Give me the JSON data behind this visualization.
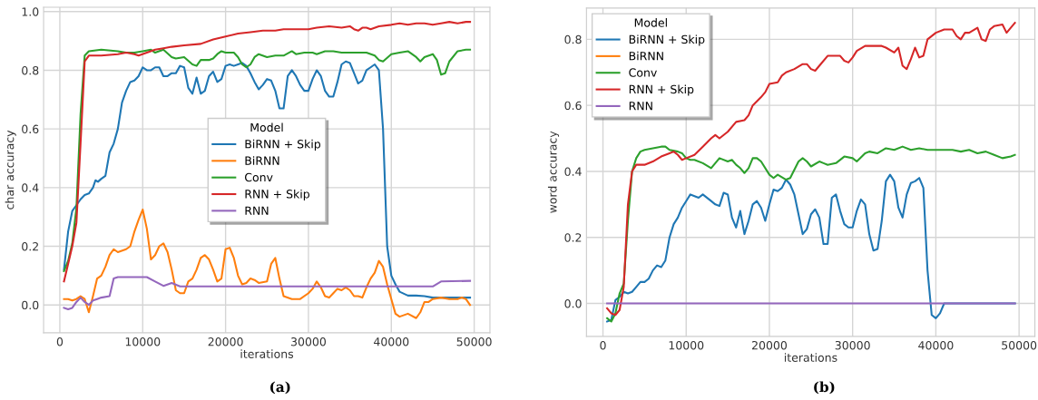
{
  "chart_data": [
    {
      "type": "line",
      "xlabel": "iterations",
      "ylabel": "char accuracy",
      "legend_title": "Model",
      "legend": "center",
      "grid": true,
      "annotations": [
        "(a)"
      ],
      "xlim": [
        -1960,
        51900
      ],
      "ylim": [
        -0.095,
        1.015
      ],
      "xticks": [
        0,
        10000,
        20000,
        30000,
        40000,
        50000
      ],
      "yticks": [
        {
          "value": 0,
          "label": "0.0"
        },
        {
          "value": 0.2,
          "label": "0.2"
        },
        {
          "value": 0.4,
          "label": "0.4"
        },
        {
          "value": 0.6,
          "label": "0.6"
        },
        {
          "value": 0.8,
          "label": "0.8"
        },
        {
          "value": 1.0,
          "label": "1.0"
        }
      ],
      "series": [
        {
          "name": "BiRNN + Skip",
          "color": "#1f77b4",
          "x": [
            500,
            1000,
            1500,
            2000,
            2500,
            3000,
            3500,
            4000,
            4300,
            4600,
            5000,
            5500,
            6000,
            6500,
            7000,
            7500,
            8000,
            8500,
            9000,
            9500,
            10000,
            10500,
            11000,
            11500,
            12000,
            12500,
            13000,
            13500,
            14000,
            14500,
            15000,
            15500,
            16000,
            16500,
            17000,
            17500,
            18000,
            18500,
            19000,
            19500,
            20000,
            20500,
            21000,
            21500,
            22000,
            22500,
            23000,
            23500,
            24000,
            24500,
            25000,
            25500,
            26000,
            26500,
            27000,
            27500,
            28000,
            28500,
            29000,
            29500,
            30000,
            30500,
            31000,
            31500,
            32000,
            32500,
            33000,
            33500,
            34000,
            34500,
            35000,
            35500,
            36000,
            36500,
            37000,
            37500,
            38000,
            38500,
            39000,
            39500,
            40000,
            40500,
            41000,
            42000,
            43000,
            44000,
            45000,
            49500
          ],
          "values": [
            0.12,
            0.25,
            0.32,
            0.34,
            0.36,
            0.375,
            0.38,
            0.4,
            0.425,
            0.42,
            0.43,
            0.44,
            0.52,
            0.55,
            0.6,
            0.69,
            0.73,
            0.76,
            0.765,
            0.78,
            0.81,
            0.8,
            0.8,
            0.81,
            0.81,
            0.78,
            0.78,
            0.79,
            0.79,
            0.815,
            0.81,
            0.74,
            0.72,
            0.775,
            0.72,
            0.73,
            0.78,
            0.795,
            0.76,
            0.77,
            0.815,
            0.82,
            0.815,
            0.82,
            0.825,
            0.815,
            0.79,
            0.76,
            0.735,
            0.75,
            0.77,
            0.765,
            0.73,
            0.67,
            0.67,
            0.78,
            0.8,
            0.78,
            0.75,
            0.73,
            0.73,
            0.77,
            0.8,
            0.78,
            0.73,
            0.71,
            0.71,
            0.76,
            0.82,
            0.83,
            0.825,
            0.79,
            0.755,
            0.765,
            0.8,
            0.81,
            0.82,
            0.8,
            0.6,
            0.2,
            0.1,
            0.07,
            0.045,
            0.032,
            0.032,
            0.03,
            0.025,
            0.025
          ]
        },
        {
          "name": "BiRNN",
          "color": "#ff7f0e",
          "x": [
            500,
            1000,
            1500,
            2000,
            2500,
            3000,
            3500,
            4000,
            4500,
            5000,
            5500,
            6000,
            6500,
            7000,
            8000,
            8500,
            9000,
            9500,
            10000,
            10500,
            11000,
            11500,
            12000,
            12500,
            13000,
            13500,
            14000,
            14500,
            15000,
            15500,
            16000,
            16500,
            17000,
            17500,
            18000,
            18500,
            19000,
            19500,
            20000,
            20500,
            21000,
            21500,
            22000,
            22500,
            23000,
            23500,
            24000,
            25000,
            25500,
            26000,
            26500,
            27000,
            28000,
            29000,
            30000,
            30500,
            31000,
            31500,
            32000,
            32500,
            33000,
            33500,
            34000,
            34500,
            35000,
            35500,
            36000,
            36500,
            37000,
            37500,
            38000,
            38500,
            39000,
            39500,
            40000,
            40500,
            41000,
            42000,
            43000,
            43500,
            44000,
            44500,
            45000,
            46000,
            47000,
            48000,
            48500,
            49000,
            49500
          ],
          "values": [
            0.02,
            0.02,
            0.015,
            0.02,
            0.03,
            0.02,
            -0.025,
            0.03,
            0.09,
            0.1,
            0.13,
            0.17,
            0.19,
            0.18,
            0.19,
            0.2,
            0.25,
            0.29,
            0.325,
            0.26,
            0.155,
            0.17,
            0.2,
            0.21,
            0.18,
            0.12,
            0.05,
            0.04,
            0.04,
            0.08,
            0.09,
            0.12,
            0.16,
            0.17,
            0.155,
            0.12,
            0.08,
            0.09,
            0.19,
            0.195,
            0.16,
            0.1,
            0.07,
            0.075,
            0.09,
            0.085,
            0.075,
            0.08,
            0.14,
            0.16,
            0.09,
            0.03,
            0.02,
            0.02,
            0.04,
            0.055,
            0.08,
            0.06,
            0.03,
            0.025,
            0.04,
            0.055,
            0.05,
            0.06,
            0.05,
            0.03,
            0.03,
            0.025,
            0.06,
            0.09,
            0.11,
            0.15,
            0.13,
            0.07,
            0.02,
            -0.03,
            -0.04,
            -0.03,
            -0.045,
            -0.025,
            0.01,
            0.01,
            0.02,
            0.025,
            0.02,
            0.02,
            0.025,
            0.02,
            0.0
          ]
        },
        {
          "name": "Conv",
          "color": "#2ca02c",
          "x": [
            500,
            1000,
            1500,
            2000,
            2500,
            3000,
            3500,
            5000,
            7000,
            8000,
            9000,
            10000,
            11000,
            11500,
            12500,
            13500,
            14000,
            15000,
            16000,
            16500,
            17000,
            18000,
            18500,
            19000,
            19500,
            20000,
            21000,
            21500,
            22000,
            22500,
            23000,
            23500,
            24000,
            25000,
            26000,
            27000,
            28000,
            28500,
            29500,
            30500,
            31000,
            32000,
            33000,
            34000,
            35000,
            36000,
            37000,
            38000,
            38500,
            39000,
            40000,
            41000,
            42000,
            43000,
            43500,
            44000,
            45000,
            45500,
            46000,
            46500,
            47000,
            48000,
            49000,
            49500
          ],
          "values": [
            0.115,
            0.15,
            0.21,
            0.33,
            0.65,
            0.85,
            0.865,
            0.87,
            0.865,
            0.86,
            0.86,
            0.865,
            0.87,
            0.86,
            0.87,
            0.845,
            0.84,
            0.845,
            0.82,
            0.815,
            0.835,
            0.835,
            0.84,
            0.855,
            0.865,
            0.86,
            0.86,
            0.845,
            0.82,
            0.81,
            0.82,
            0.845,
            0.855,
            0.845,
            0.85,
            0.85,
            0.865,
            0.855,
            0.86,
            0.86,
            0.855,
            0.865,
            0.865,
            0.86,
            0.86,
            0.86,
            0.86,
            0.85,
            0.835,
            0.83,
            0.855,
            0.86,
            0.865,
            0.845,
            0.83,
            0.845,
            0.855,
            0.835,
            0.785,
            0.79,
            0.83,
            0.865,
            0.87,
            0.87
          ]
        },
        {
          "name": "RNN + Skip",
          "color": "#d62728",
          "x": [
            500,
            1000,
            1500,
            2000,
            2500,
            3000,
            3500,
            5000,
            7000,
            8000,
            9000,
            9500,
            10500,
            11500,
            12500,
            13500,
            15000,
            17000,
            18500,
            20000,
            21500,
            23000,
            24500,
            26000,
            27000,
            29000,
            30000,
            31000,
            32500,
            34000,
            35000,
            35500,
            36000,
            36500,
            37000,
            37500,
            38500,
            40000,
            41000,
            42000,
            43000,
            44000,
            45000,
            46000,
            47000,
            48000,
            49000,
            49500
          ],
          "values": [
            0.08,
            0.14,
            0.2,
            0.28,
            0.55,
            0.83,
            0.85,
            0.85,
            0.855,
            0.86,
            0.855,
            0.85,
            0.86,
            0.87,
            0.875,
            0.88,
            0.885,
            0.89,
            0.905,
            0.915,
            0.925,
            0.93,
            0.935,
            0.935,
            0.94,
            0.94,
            0.94,
            0.945,
            0.95,
            0.945,
            0.95,
            0.94,
            0.935,
            0.945,
            0.945,
            0.94,
            0.95,
            0.955,
            0.96,
            0.955,
            0.96,
            0.96,
            0.955,
            0.96,
            0.965,
            0.96,
            0.965,
            0.965
          ]
        },
        {
          "name": "RNN",
          "color": "#9467bd",
          "x": [
            500,
            1000,
            1500,
            2000,
            2500,
            3000,
            3500,
            4000,
            4500,
            5000,
            6000,
            6500,
            7000,
            10500,
            11500,
            12500,
            13500,
            14500,
            45000,
            46000,
            49500
          ],
          "values": [
            -0.01,
            -0.015,
            -0.01,
            0.01,
            0.025,
            0.01,
            0.0,
            0.015,
            0.02,
            0.025,
            0.03,
            0.09,
            0.095,
            0.095,
            0.08,
            0.065,
            0.075,
            0.063,
            0.063,
            0.08,
            0.082
          ]
        }
      ]
    },
    {
      "type": "line",
      "xlabel": "iterations",
      "ylabel": "word accuracy",
      "legend_title": "Model",
      "legend": "top left",
      "grid": true,
      "annotations": [
        "(b)"
      ],
      "xlim": [
        -1980,
        51900
      ],
      "ylim": [
        -0.1,
        0.895
      ],
      "xticks": [
        0,
        10000,
        20000,
        30000,
        40000,
        50000
      ],
      "yticks": [
        {
          "value": 0,
          "label": "0.0"
        },
        {
          "value": 0.2,
          "label": "0.2"
        },
        {
          "value": 0.4,
          "label": "0.4"
        },
        {
          "value": 0.6,
          "label": "0.6"
        },
        {
          "value": 0.8,
          "label": "0.8"
        }
      ],
      "series": [
        {
          "name": "BiRNN + Skip",
          "color": "#1f77b4",
          "x": [
            500,
            1000,
            1500,
            2000,
            2500,
            3000,
            3500,
            4000,
            4500,
            5000,
            5500,
            6000,
            6500,
            7000,
            7500,
            8000,
            8500,
            9000,
            9500,
            10000,
            10500,
            11000,
            11500,
            12000,
            13000,
            13500,
            14000,
            14500,
            15000,
            15500,
            16000,
            16500,
            17000,
            17500,
            18000,
            18500,
            19000,
            19500,
            20000,
            20500,
            21000,
            21500,
            22000,
            22500,
            23000,
            23500,
            24000,
            24500,
            25000,
            25500,
            26000,
            26500,
            27000,
            27500,
            28000,
            28500,
            29000,
            29500,
            30000,
            30500,
            31000,
            31500,
            32000,
            32500,
            33000,
            33500,
            34000,
            34500,
            35000,
            35500,
            36000,
            36500,
            37000,
            37500,
            38000,
            38500,
            39000,
            39500,
            40000,
            40500,
            41000,
            49500
          ],
          "values": [
            -0.055,
            -0.05,
            0.01,
            0.02,
            0.035,
            0.03,
            0.035,
            0.05,
            0.065,
            0.065,
            0.075,
            0.1,
            0.115,
            0.11,
            0.13,
            0.2,
            0.24,
            0.26,
            0.29,
            0.31,
            0.33,
            0.325,
            0.32,
            0.33,
            0.31,
            0.3,
            0.295,
            0.335,
            0.33,
            0.26,
            0.23,
            0.28,
            0.21,
            0.25,
            0.3,
            0.31,
            0.29,
            0.25,
            0.3,
            0.345,
            0.34,
            0.35,
            0.375,
            0.36,
            0.33,
            0.27,
            0.21,
            0.225,
            0.27,
            0.285,
            0.26,
            0.18,
            0.18,
            0.32,
            0.33,
            0.28,
            0.24,
            0.23,
            0.23,
            0.28,
            0.315,
            0.3,
            0.21,
            0.16,
            0.165,
            0.25,
            0.37,
            0.39,
            0.37,
            0.29,
            0.26,
            0.33,
            0.365,
            0.37,
            0.38,
            0.35,
            0.1,
            -0.035,
            -0.045,
            -0.03,
            0.0,
            0.0
          ]
        },
        {
          "name": "BiRNN",
          "color": "#ff7f0e"
        },
        {
          "name": "Conv",
          "color": "#2ca02c",
          "x": [
            500,
            1000,
            1500,
            2000,
            2500,
            3000,
            3500,
            4000,
            4500,
            5000,
            6000,
            7000,
            7500,
            8000,
            9000,
            9500,
            10000,
            10500,
            11000,
            12000,
            13000,
            14000,
            15000,
            15500,
            16000,
            16500,
            17000,
            17500,
            18000,
            18500,
            19000,
            20000,
            20500,
            21000,
            22000,
            22500,
            23500,
            24000,
            24500,
            25000,
            26000,
            26500,
            27000,
            28000,
            29000,
            30000,
            30500,
            31500,
            32000,
            33000,
            34000,
            35000,
            36000,
            37000,
            38000,
            39000,
            40000,
            41000,
            42000,
            43000,
            44000,
            45000,
            46000,
            47000,
            48000,
            49000,
            49500
          ],
          "values": [
            -0.045,
            -0.055,
            -0.03,
            0.03,
            0.06,
            0.25,
            0.4,
            0.44,
            0.46,
            0.465,
            0.47,
            0.475,
            0.475,
            0.465,
            0.46,
            0.455,
            0.44,
            0.435,
            0.435,
            0.425,
            0.41,
            0.44,
            0.43,
            0.435,
            0.42,
            0.41,
            0.395,
            0.41,
            0.44,
            0.44,
            0.43,
            0.39,
            0.38,
            0.39,
            0.375,
            0.38,
            0.43,
            0.44,
            0.43,
            0.415,
            0.43,
            0.425,
            0.42,
            0.425,
            0.445,
            0.44,
            0.43,
            0.455,
            0.46,
            0.455,
            0.47,
            0.465,
            0.475,
            0.465,
            0.47,
            0.465,
            0.465,
            0.465,
            0.465,
            0.46,
            0.465,
            0.455,
            0.46,
            0.45,
            0.44,
            0.445,
            0.45
          ]
        },
        {
          "name": "RNN + Skip",
          "color": "#d62728",
          "x": [
            500,
            1000,
            1500,
            2000,
            2500,
            3000,
            3500,
            4000,
            5000,
            6000,
            7000,
            8000,
            8500,
            9000,
            9500,
            10000,
            11000,
            12000,
            13000,
            13500,
            14000,
            15000,
            16000,
            17000,
            17500,
            18000,
            19000,
            19500,
            20000,
            21000,
            21500,
            22000,
            23000,
            24000,
            24500,
            25000,
            25500,
            26000,
            27000,
            28000,
            28500,
            29000,
            29500,
            30000,
            30500,
            31500,
            32500,
            33500,
            34000,
            35000,
            35500,
            36000,
            36500,
            37000,
            37500,
            38000,
            38500,
            39000,
            40000,
            41000,
            42000,
            42500,
            43000,
            43500,
            44000,
            45000,
            45500,
            46000,
            46500,
            47000,
            48000,
            48500,
            49000,
            49500
          ],
          "values": [
            -0.015,
            -0.03,
            -0.035,
            -0.02,
            0.05,
            0.3,
            0.4,
            0.42,
            0.42,
            0.43,
            0.445,
            0.455,
            0.46,
            0.45,
            0.435,
            0.44,
            0.45,
            0.475,
            0.5,
            0.51,
            0.5,
            0.52,
            0.55,
            0.555,
            0.57,
            0.6,
            0.625,
            0.64,
            0.665,
            0.67,
            0.69,
            0.7,
            0.71,
            0.725,
            0.725,
            0.71,
            0.705,
            0.72,
            0.75,
            0.75,
            0.75,
            0.735,
            0.73,
            0.745,
            0.765,
            0.78,
            0.78,
            0.78,
            0.775,
            0.76,
            0.775,
            0.72,
            0.71,
            0.74,
            0.775,
            0.745,
            0.75,
            0.8,
            0.82,
            0.83,
            0.83,
            0.81,
            0.8,
            0.82,
            0.82,
            0.835,
            0.8,
            0.795,
            0.83,
            0.84,
            0.845,
            0.82,
            0.835,
            0.85
          ]
        },
        {
          "name": "RNN",
          "color": "#9467bd",
          "x": [
            500,
            49500
          ],
          "values": [
            0.0,
            0.0
          ]
        }
      ]
    }
  ]
}
